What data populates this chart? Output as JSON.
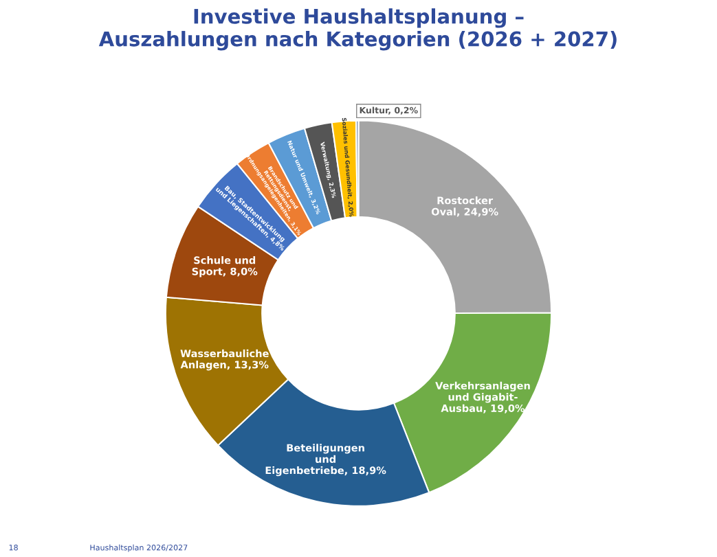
{
  "chart_data": {
    "type": "donut",
    "title": "Investive Haushaltsplanung –\nAuszahlungen nach Kategorien (2026 + 2027)",
    "categories": [
      "Rostocker Oval",
      "Verkehrsanlagen und Gigabit-Ausbau",
      "Beteiligungen und Eigenbetriebe",
      "Wasserbauliche Anlagen",
      "Schule und Sport",
      "Bau, Stadtentwicklung und Liegenschaften",
      "Brandschutz und Rettungsdienst, Ordnungsangelegenheiten",
      "Natur und Umwelt",
      "Verwaltung",
      "Soziales und Gesundheit",
      "Kultur"
    ],
    "values": [
      24.9,
      19.0,
      18.9,
      13.3,
      8.0,
      4.8,
      3.1,
      3.2,
      2.3,
      2.0,
      0.2
    ],
    "value_labels": [
      "24,9%",
      "19,0%",
      "18,9%",
      "13,3%",
      "8,0%",
      "4,8%",
      "3,1%",
      "3,2%",
      "2,3%",
      "2,0%",
      "0,2%"
    ],
    "colors": [
      "#a5a5a5",
      "#70ad47",
      "#255e91",
      "#9e7303",
      "#9e480e",
      "#4472c4",
      "#ed7d31",
      "#5b9bd5",
      "#555555",
      "#ffc000",
      "#8497b0"
    ],
    "annotations": [
      "18",
      "Haushaltsplan 2026/2027"
    ]
  }
}
